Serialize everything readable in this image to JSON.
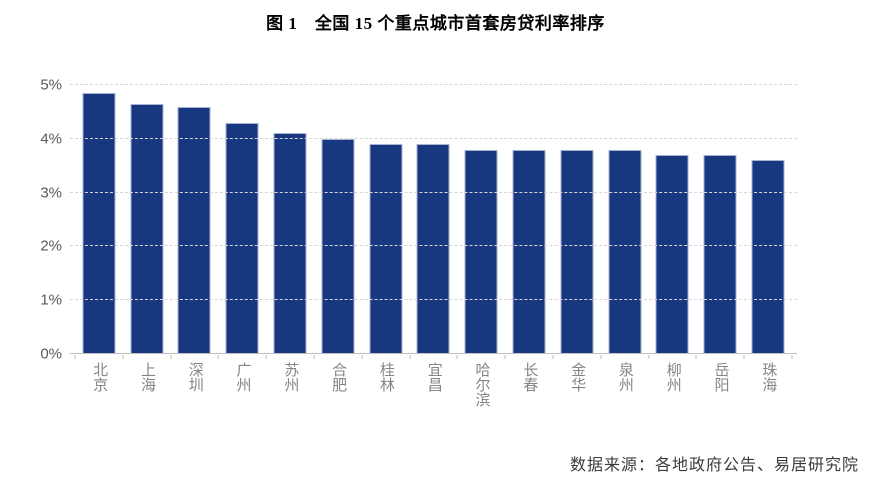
{
  "title": "图 1　全国 15 个重点城市首套房贷利率排序",
  "footer": "数据来源：各地政府公告、易居研究院",
  "chart_data": {
    "type": "bar",
    "title": "图 1　全国 15 个重点城市首套房贷利率排序",
    "categories": [
      "北京",
      "上海",
      "深圳",
      "广州",
      "苏州",
      "合肥",
      "桂林",
      "宜昌",
      "哈尔滨",
      "长春",
      "金华",
      "泉州",
      "柳州",
      "岳阳",
      "珠海"
    ],
    "values": [
      4.85,
      4.65,
      4.6,
      4.3,
      4.1,
      4.0,
      3.9,
      3.9,
      3.8,
      3.8,
      3.8,
      3.8,
      3.7,
      3.7,
      3.6
    ],
    "unit": "%",
    "xlabel": "",
    "ylabel": "",
    "ylim": [
      0,
      5
    ],
    "yticks": [
      "0%",
      "1%",
      "2%",
      "3%",
      "4%",
      "5%"
    ],
    "grid": "horizontal-dashed",
    "legend": "none",
    "source_note": "数据来源：各地政府公告、易居研究院"
  },
  "colors": {
    "bar_fill": "#17377E",
    "bar_border": "#A8B2D2",
    "gridline": "#D6D6D6",
    "axis_line": "#BFBFBF",
    "ytick_label": "#595959",
    "xtick_label": "#868686",
    "title_text": "#000000",
    "footer_text": "#3D3A3A",
    "background": "#FFFFFF"
  }
}
